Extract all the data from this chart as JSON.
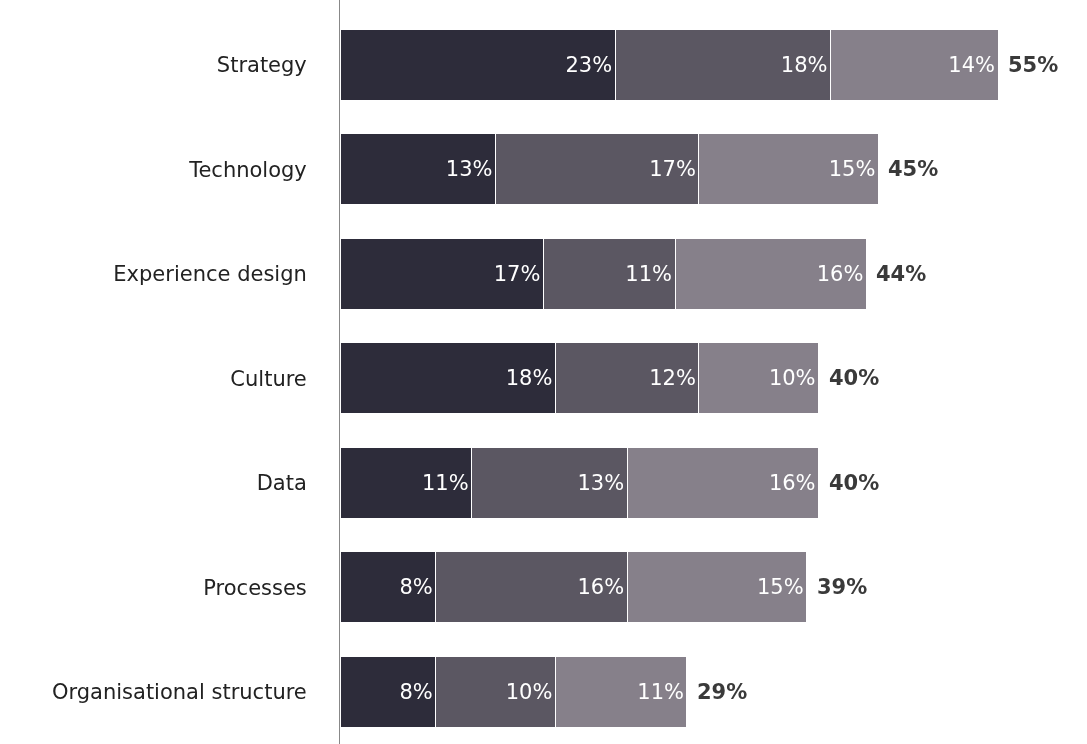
{
  "chart_data": {
    "type": "bar",
    "orientation": "horizontal",
    "stacked": true,
    "categories": [
      "Strategy",
      "Technology",
      "Experience design",
      "Culture",
      "Data",
      "Processes",
      "Organisational structure"
    ],
    "series": [
      {
        "color": "#2d2c3a",
        "values": [
          23,
          13,
          17,
          18,
          11,
          8,
          8
        ],
        "value_labels": [
          "23%",
          "13%",
          "17%",
          "18%",
          "11%",
          "8%",
          "8%"
        ]
      },
      {
        "color": "#5b5762",
        "values": [
          18,
          17,
          11,
          12,
          13,
          16,
          10
        ],
        "value_labels": [
          "18%",
          "17%",
          "11%",
          "12%",
          "13%",
          "16%",
          "10%"
        ]
      },
      {
        "color": "#86808a",
        "values": [
          14,
          15,
          16,
          10,
          16,
          15,
          11
        ],
        "value_labels": [
          "14%",
          "15%",
          "16%",
          "10%",
          "16%",
          "15%",
          "11%"
        ]
      }
    ],
    "totals": [
      "55%",
      "45%",
      "44%",
      "40%",
      "40%",
      "39%",
      "29%"
    ]
  }
}
